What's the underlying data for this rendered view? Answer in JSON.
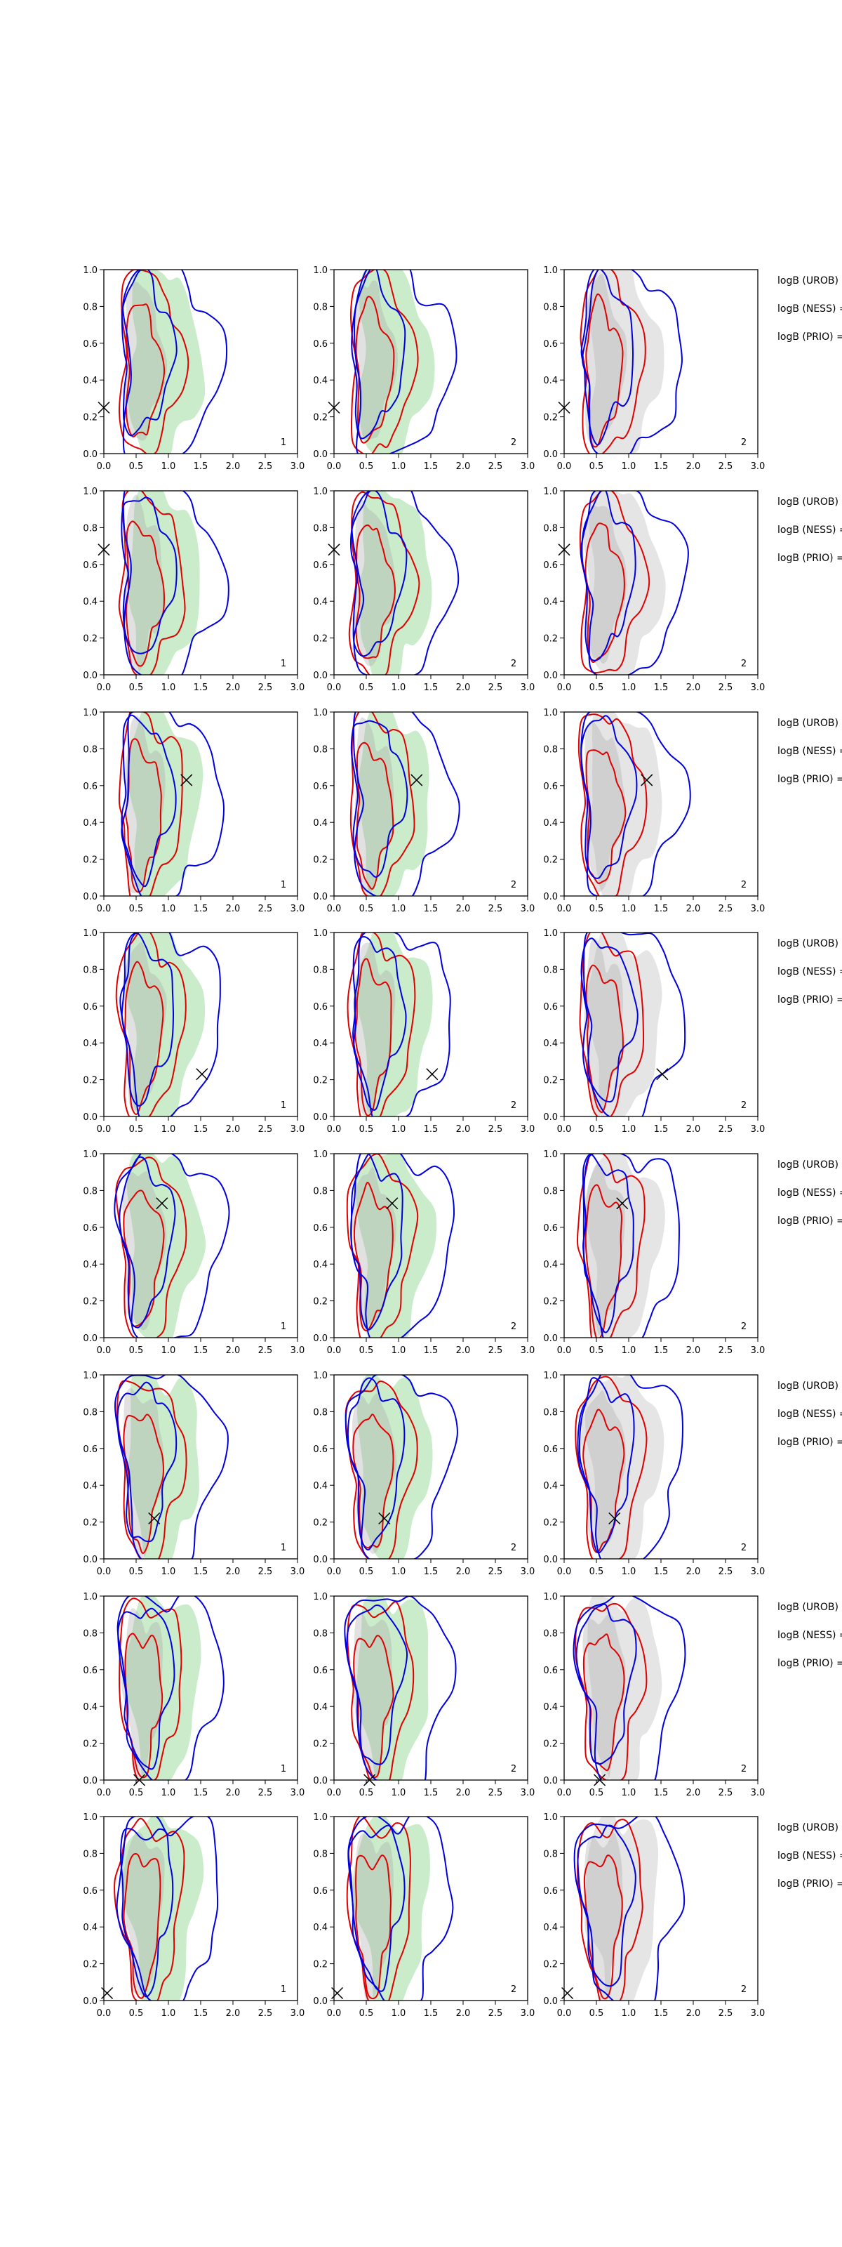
{
  "chart_data": {
    "type": "contour",
    "layout": {
      "rows": 8,
      "cols": 3
    },
    "xlim": [
      0,
      3
    ],
    "ylim": [
      0,
      1
    ],
    "xticks": [
      "0.0",
      "0.5",
      "1.0",
      "1.5",
      "2.0",
      "2.5",
      "3.0"
    ],
    "yticks": [
      "0.0",
      "0.2",
      "0.4",
      "0.6",
      "0.8",
      "1.0"
    ],
    "column_corner_labels": [
      "1",
      "2",
      "2"
    ],
    "column_fill_colors": [
      "#b8e6b8",
      "#b8e6b8",
      "#dcdcdc"
    ],
    "line_colors": {
      "red": "#e00000",
      "blue": "#0000e0"
    },
    "side_labels": [
      "logB (UROB) =",
      "logB (NESS) =",
      "logB (PRIO) ="
    ],
    "markers": [
      {
        "x": 0.0,
        "y": 0.25
      },
      {
        "x": 0.0,
        "y": 0.68
      },
      {
        "x": 1.28,
        "y": 0.63
      },
      {
        "x": 1.52,
        "y": 0.23
      },
      {
        "x": 0.9,
        "y": 0.73
      },
      {
        "x": 0.78,
        "y": 0.22
      },
      {
        "x": 0.55,
        "y": 0.0
      },
      {
        "x": 0.05,
        "y": 0.04
      }
    ]
  }
}
